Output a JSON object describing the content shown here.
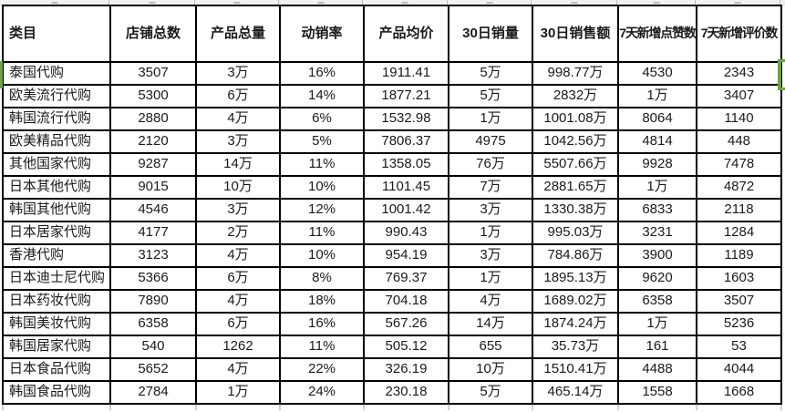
{
  "colors": {
    "selection_green": "#69a544",
    "cell_border": "#000000",
    "strip_bg": "#f1f1f1"
  },
  "table": {
    "columns": [
      "类目",
      "店铺总数",
      "产品总量",
      "动销率",
      "产品均价",
      "30日销量",
      "30日销售额",
      "7天新增点赞数",
      "7天新增评价数"
    ],
    "rows": [
      [
        "泰国代购",
        "3507",
        "3万",
        "16%",
        "1911.41",
        "5万",
        "998.77万",
        "4530",
        "2343"
      ],
      [
        "欧美流行代购",
        "5300",
        "6万",
        "14%",
        "1877.21",
        "5万",
        "2832万",
        "1万",
        "3407"
      ],
      [
        "韩国流行代购",
        "2880",
        "4万",
        "6%",
        "1532.98",
        "1万",
        "1001.08万",
        "8064",
        "1140"
      ],
      [
        "欧美精品代购",
        "2120",
        "3万",
        "5%",
        "7806.37",
        "4975",
        "1042.56万",
        "4814",
        "448"
      ],
      [
        "其他国家代购",
        "9287",
        "14万",
        "11%",
        "1358.05",
        "76万",
        "5507.66万",
        "9928",
        "7478"
      ],
      [
        "日本其他代购",
        "9015",
        "10万",
        "10%",
        "1101.45",
        "7万",
        "2881.65万",
        "1万",
        "4872"
      ],
      [
        "韩国其他代购",
        "4546",
        "3万",
        "12%",
        "1001.42",
        "3万",
        "1330.38万",
        "6833",
        "2118"
      ],
      [
        "日本居家代购",
        "4177",
        "2万",
        "11%",
        "990.43",
        "1万",
        "995.03万",
        "3231",
        "1284"
      ],
      [
        "香港代购",
        "3123",
        "4万",
        "10%",
        "954.19",
        "3万",
        "784.86万",
        "3900",
        "1189"
      ],
      [
        "日本迪士尼代购",
        "5366",
        "6万",
        "8%",
        "769.37",
        "1万",
        "1895.13万",
        "9620",
        "1603"
      ],
      [
        "日本药妆代购",
        "7890",
        "4万",
        "18%",
        "704.18",
        "4万",
        "1689.02万",
        "6358",
        "3507"
      ],
      [
        "韩国美妆代购",
        "6358",
        "6万",
        "16%",
        "567.26",
        "14万",
        "1874.24万",
        "1万",
        "5236"
      ],
      [
        "韩国居家代购",
        "540",
        "1262",
        "11%",
        "505.12",
        "655",
        "35.73万",
        "161",
        "53"
      ],
      [
        "日本食品代购",
        "5652",
        "4万",
        "22%",
        "326.19",
        "10万",
        "1510.41万",
        "4488",
        "4044"
      ],
      [
        "韩国食品代购",
        "2784",
        "1万",
        "24%",
        "230.18",
        "5万",
        "465.14万",
        "1558",
        "1668"
      ]
    ]
  }
}
